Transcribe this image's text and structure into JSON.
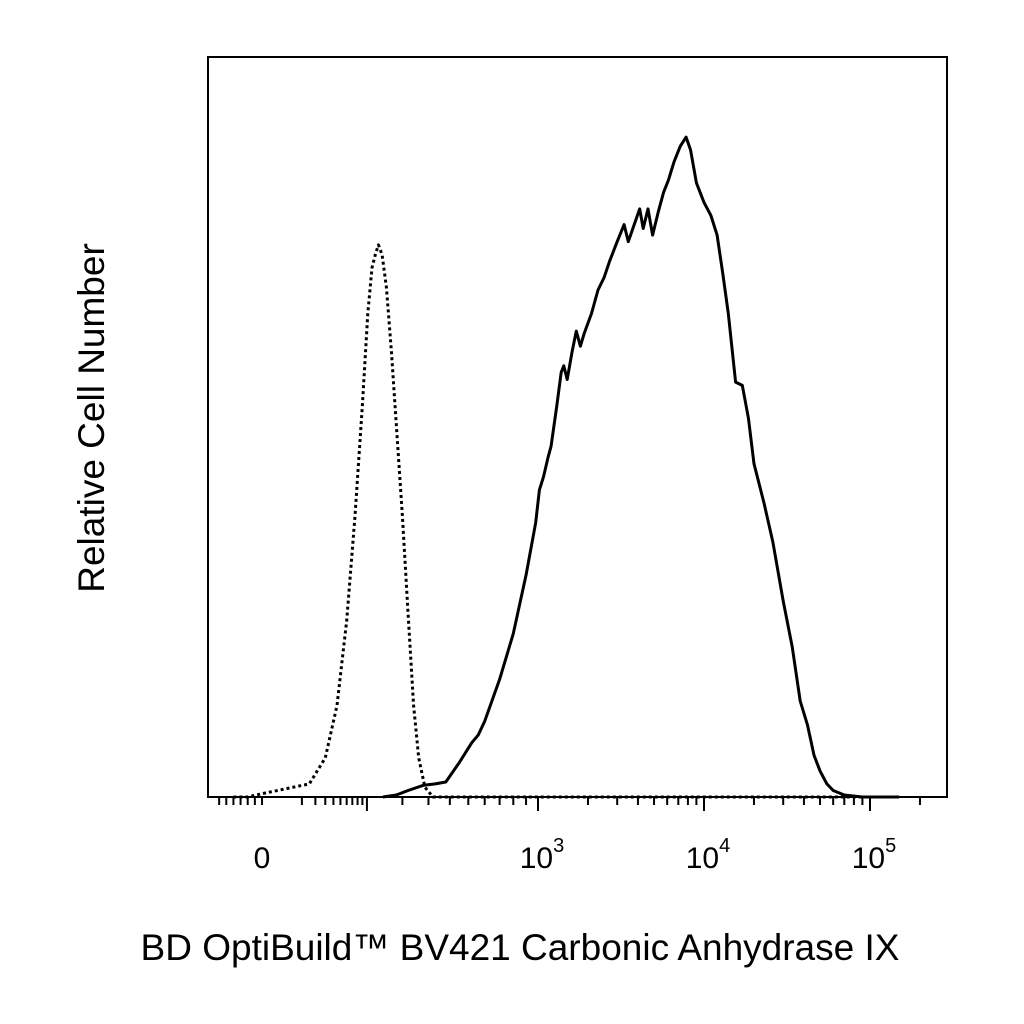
{
  "chart_data": {
    "type": "line",
    "title": "",
    "xlabel": "BD OptiBuild™ BV421 Carbonic Anhydrase IX",
    "ylabel": "Relative Cell Number",
    "x_scale": "biexponential",
    "xlim": [
      -70,
      200000
    ],
    "ylim": [
      0,
      100
    ],
    "grid": false,
    "legend": "none",
    "x_tick_labels": [
      {
        "value": 0,
        "base": "0",
        "exp": ""
      },
      {
        "value": 1000,
        "base": "10",
        "exp": "3"
      },
      {
        "value": 10000,
        "base": "10",
        "exp": "4"
      },
      {
        "value": 100000,
        "base": "10",
        "exp": "5"
      }
    ],
    "series": [
      {
        "style": "dotted",
        "color": "#000000",
        "points": [
          [
            -40,
            0
          ],
          [
            -20,
            0
          ],
          [
            0,
            0.5
          ],
          [
            15,
            2
          ],
          [
            30,
            6
          ],
          [
            45,
            14
          ],
          [
            60,
            27
          ],
          [
            75,
            43
          ],
          [
            90,
            60
          ],
          [
            102,
            74
          ],
          [
            112,
            81
          ],
          [
            120,
            83
          ],
          [
            128,
            84.5
          ],
          [
            138,
            83
          ],
          [
            150,
            78
          ],
          [
            165,
            68
          ],
          [
            180,
            57
          ],
          [
            200,
            43
          ],
          [
            220,
            28
          ],
          [
            240,
            14
          ],
          [
            260,
            6
          ],
          [
            285,
            1.5
          ],
          [
            320,
            0
          ],
          [
            400,
            0
          ],
          [
            1000,
            0
          ],
          [
            10000,
            0
          ],
          [
            100000,
            0
          ]
        ]
      },
      {
        "style": "solid",
        "color": "#000000",
        "points": [
          [
            140,
            0
          ],
          [
            180,
            0.3
          ],
          [
            220,
            1
          ],
          [
            280,
            1.8
          ],
          [
            330,
            2
          ],
          [
            380,
            2.3
          ],
          [
            450,
            5.3
          ],
          [
            520,
            8.3
          ],
          [
            560,
            9.5
          ],
          [
            600,
            11.6
          ],
          [
            700,
            18
          ],
          [
            800,
            25
          ],
          [
            900,
            34
          ],
          [
            980,
            42
          ],
          [
            1020,
            47
          ],
          [
            1080,
            49
          ],
          [
            1150,
            52
          ],
          [
            1200,
            53.7
          ],
          [
            1300,
            60
          ],
          [
            1380,
            65
          ],
          [
            1430,
            66
          ],
          [
            1500,
            63.9
          ],
          [
            1600,
            68
          ],
          [
            1700,
            71.3
          ],
          [
            1800,
            69
          ],
          [
            1900,
            71
          ],
          [
            2100,
            74
          ],
          [
            2300,
            77.6
          ],
          [
            2500,
            79.5
          ],
          [
            2700,
            82
          ],
          [
            3000,
            85
          ],
          [
            3300,
            87.6
          ],
          [
            3500,
            85
          ],
          [
            3800,
            87.6
          ],
          [
            4100,
            90
          ],
          [
            4300,
            87
          ],
          [
            4600,
            90
          ],
          [
            4900,
            86
          ],
          [
            5300,
            89.5
          ],
          [
            5700,
            92.5
          ],
          [
            6100,
            94.4
          ],
          [
            6600,
            97.2
          ],
          [
            7200,
            99.6
          ],
          [
            7800,
            101
          ],
          [
            8300,
            99
          ],
          [
            9000,
            94
          ],
          [
            10000,
            91
          ],
          [
            11000,
            89
          ],
          [
            12000,
            86
          ],
          [
            13000,
            80
          ],
          [
            14000,
            74
          ],
          [
            15500,
            63.5
          ],
          [
            17000,
            63
          ],
          [
            18500,
            58
          ],
          [
            20000,
            51
          ],
          [
            23000,
            45
          ],
          [
            26000,
            39
          ],
          [
            30000,
            30
          ],
          [
            34000,
            23
          ],
          [
            38000,
            14.7
          ],
          [
            42000,
            11
          ],
          [
            46000,
            6.4
          ],
          [
            50000,
            4
          ],
          [
            55000,
            2
          ],
          [
            60000,
            1
          ],
          [
            70000,
            0.3
          ],
          [
            90000,
            0
          ],
          [
            150000,
            0
          ]
        ]
      }
    ]
  }
}
